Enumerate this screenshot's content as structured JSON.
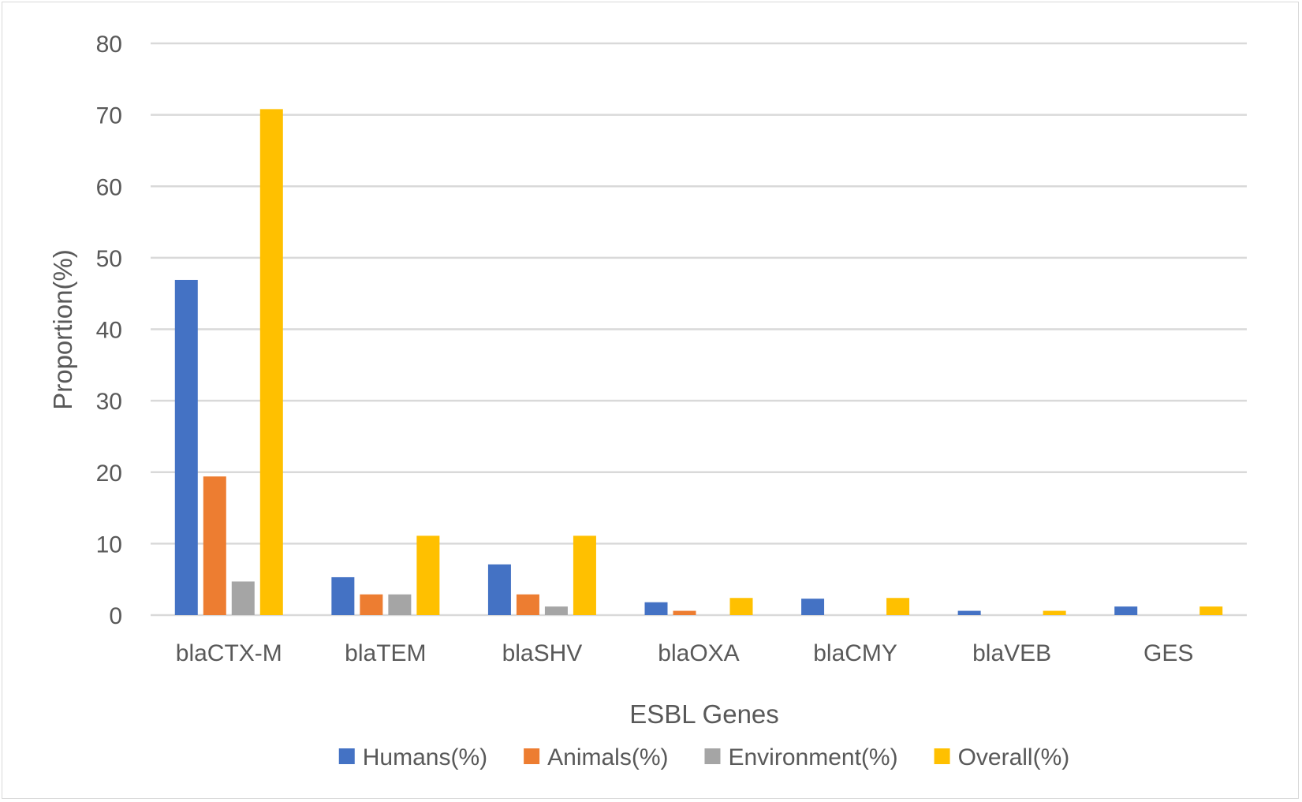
{
  "chart_data": {
    "type": "bar",
    "title": "",
    "xlabel": "ESBL Genes",
    "ylabel": "Proportion(%)",
    "ylim": [
      0,
      80
    ],
    "yticks": [
      0,
      10,
      20,
      30,
      40,
      50,
      60,
      70,
      80
    ],
    "grid": true,
    "legend_position": "bottom",
    "categories": [
      "blaCTX-M",
      "blaTEM",
      "blaSHV",
      "blaOXA",
      "blaCMY",
      "blaVEB",
      "GES"
    ],
    "series": [
      {
        "name": "Humans(%)",
        "color": "#4472C4",
        "values": [
          46.9,
          5.3,
          7.1,
          1.8,
          2.3,
          0.6,
          1.2
        ]
      },
      {
        "name": "Animals(%)",
        "color": "#ED7D31",
        "values": [
          19.4,
          2.9,
          2.9,
          0.6,
          0,
          0,
          0
        ]
      },
      {
        "name": "Environment(%)",
        "color": "#A5A5A5",
        "values": [
          4.7,
          2.9,
          1.2,
          0,
          0,
          0,
          0
        ]
      },
      {
        "name": "Overall(%)",
        "color": "#FFC000",
        "values": [
          70.8,
          11.1,
          11.1,
          2.4,
          2.4,
          0.6,
          1.2
        ]
      }
    ]
  }
}
